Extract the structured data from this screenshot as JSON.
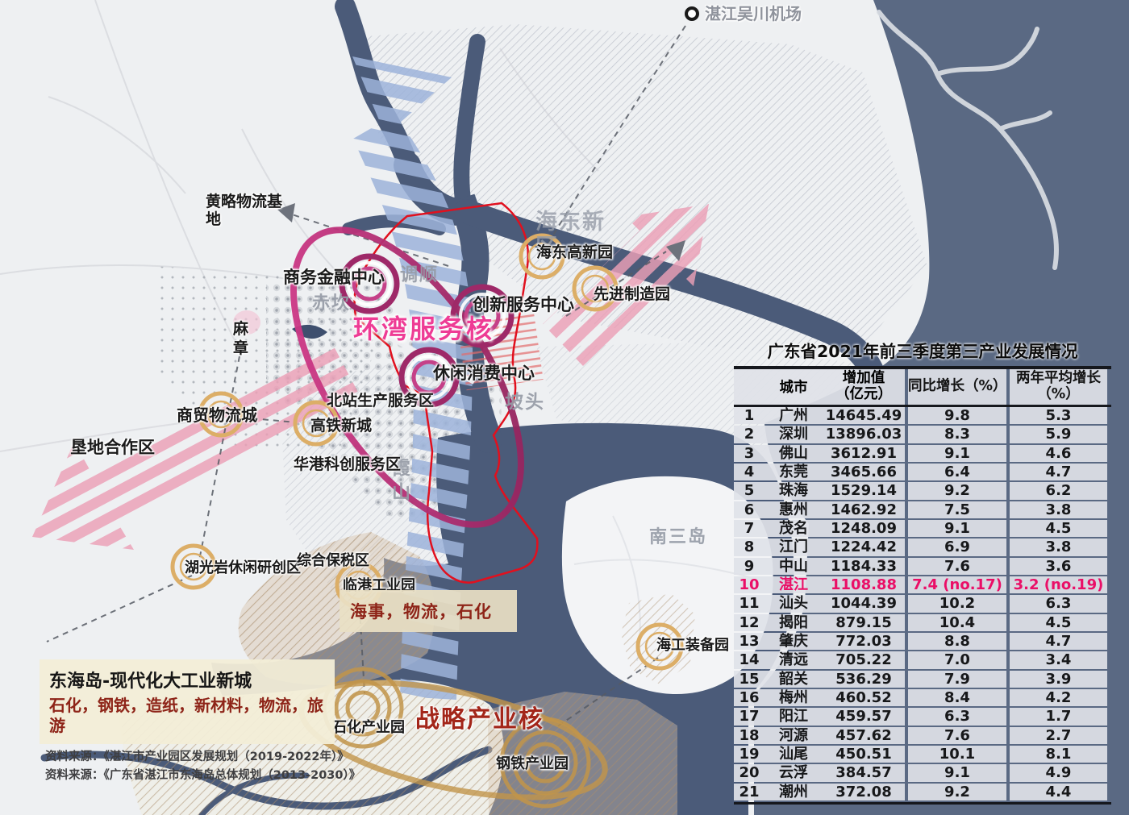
{
  "map": {
    "airport_label": "湛江吴川机场",
    "districts": {
      "chikan": "赤坎",
      "diaoshun": "调顺",
      "mazhang": "麻章",
      "potou": "坡头",
      "xiashan": "霞山",
      "nansandao": "南三岛",
      "haidong": "海东新区"
    },
    "cores": {
      "bay_service": "环湾服务核",
      "strategic_industry": "战略产业核"
    },
    "centers": {
      "business_finance": "商务金融中心",
      "innovation_service": "创新服务中心",
      "leisure_consumption": "休闲消费中心"
    },
    "sites": {
      "huanglue": "黄略物流基地",
      "shangmao": "商贸物流城",
      "kendi": "垦地合作区",
      "beizhan": "北站生产服务区",
      "gaotie": "高铁新城",
      "huagang": "华港科创服务区",
      "huguangyan": "湖光岩休闲研创区",
      "bonded_zone": "综合保税区",
      "lingang": "临港工业园",
      "haidong_hitech": "海东高新园",
      "advanced_mfg": "先进制造园",
      "marine_equip": "海工装备园",
      "petro": "石化产业园",
      "steel": "钢铁产业园"
    },
    "notes": {
      "maritime": "海事，物流，石化"
    },
    "donghai_box": {
      "title": "东海岛-现代化大工业新城",
      "industries": "石化，钢铁，造纸，新材料，物流，旅游"
    },
    "sources": [
      "资料来源：《湛江市产业园区发展规划（2019-2022年）》",
      "资料来源：《广东省湛江市东海岛总体规划（2013-2030）》"
    ]
  },
  "table": {
    "title": "广东省2021年前三季度第三产业发展情况",
    "headers": {
      "city": "城市",
      "value_line1": "增加值",
      "value_line2": "（亿元）",
      "yoy": "同比增长（%）",
      "avg_line1": "两年平均增长",
      "avg_line2": "（%）"
    },
    "highlight_rank": 10,
    "rows": [
      {
        "rank": 1,
        "city": "广州",
        "value": "14645.49",
        "yoy": "9.8",
        "avg2": "5.3"
      },
      {
        "rank": 2,
        "city": "深圳",
        "value": "13896.03",
        "yoy": "8.3",
        "avg2": "5.9"
      },
      {
        "rank": 3,
        "city": "佛山",
        "value": "3612.91",
        "yoy": "9.1",
        "avg2": "4.6"
      },
      {
        "rank": 4,
        "city": "东莞",
        "value": "3465.66",
        "yoy": "6.4",
        "avg2": "4.7"
      },
      {
        "rank": 5,
        "city": "珠海",
        "value": "1529.14",
        "yoy": "9.2",
        "avg2": "6.2"
      },
      {
        "rank": 6,
        "city": "惠州",
        "value": "1462.92",
        "yoy": "7.5",
        "avg2": "3.8"
      },
      {
        "rank": 7,
        "city": "茂名",
        "value": "1248.09",
        "yoy": "9.1",
        "avg2": "4.5"
      },
      {
        "rank": 8,
        "city": "江门",
        "value": "1224.42",
        "yoy": "6.9",
        "avg2": "3.8"
      },
      {
        "rank": 9,
        "city": "中山",
        "value": "1184.33",
        "yoy": "7.6",
        "avg2": "3.6"
      },
      {
        "rank": 10,
        "city": "湛江",
        "value": "1108.88",
        "yoy": "7.4 (no.17)",
        "avg2": "3.2 (no.19)"
      },
      {
        "rank": 11,
        "city": "汕头",
        "value": "1044.39",
        "yoy": "10.2",
        "avg2": "6.3"
      },
      {
        "rank": 12,
        "city": "揭阳",
        "value": "879.15",
        "yoy": "10.4",
        "avg2": "4.5"
      },
      {
        "rank": 13,
        "city": "肇庆",
        "value": "772.03",
        "yoy": "8.8",
        "avg2": "4.7"
      },
      {
        "rank": 14,
        "city": "清远",
        "value": "705.22",
        "yoy": "7.0",
        "avg2": "3.4"
      },
      {
        "rank": 15,
        "city": "韶关",
        "value": "536.29",
        "yoy": "7.9",
        "avg2": "3.9"
      },
      {
        "rank": 16,
        "city": "梅州",
        "value": "460.52",
        "yoy": "8.4",
        "avg2": "4.2"
      },
      {
        "rank": 17,
        "city": "阳江",
        "value": "459.57",
        "yoy": "6.3",
        "avg2": "1.7"
      },
      {
        "rank": 18,
        "city": "河源",
        "value": "457.62",
        "yoy": "7.6",
        "avg2": "2.7"
      },
      {
        "rank": 19,
        "city": "汕尾",
        "value": "450.51",
        "yoy": "10.1",
        "avg2": "8.1"
      },
      {
        "rank": 20,
        "city": "云浮",
        "value": "384.57",
        "yoy": "9.1",
        "avg2": "4.9"
      },
      {
        "rank": 21,
        "city": "潮州",
        "value": "372.08",
        "yoy": "9.2",
        "avg2": "4.4"
      }
    ]
  },
  "colors": {
    "sea": "#4b5b79",
    "ocean": "#5a6983",
    "channel_stripe": "#9db3da",
    "pink_arrow": "#eb9fb6",
    "red_boundary": "#e1101e",
    "magenta_ring": "#9e2968",
    "orange_ring": "#dcae67",
    "tan_ring": "#c2954a",
    "bay_core_pink": "#ee3c95",
    "strategic_red": "#a3261a",
    "highlight_row": "#ea0f67"
  }
}
